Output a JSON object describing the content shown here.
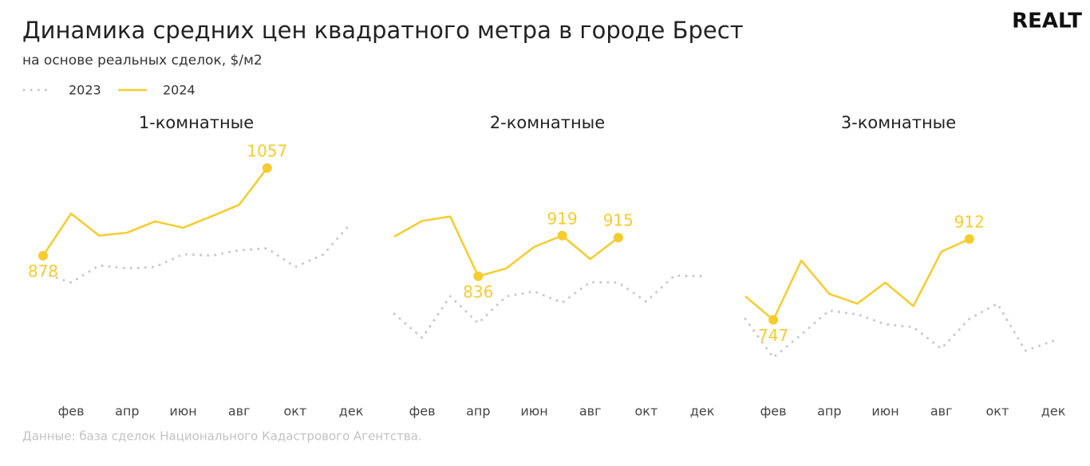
{
  "title": "Динамика средних цен квадратного метра в городе Брест",
  "subtitle": "на основе реальных сделок, $/м2",
  "logo": "REALT",
  "source": "Данные: база сделок Национального Кадастрового Агентства.",
  "chart_data": [
    {
      "type": "line",
      "title": "1-комнатные",
      "categories": [
        null,
        "фев",
        null,
        "апр",
        null,
        "июн",
        null,
        "авг",
        null,
        "окт",
        null,
        "дек"
      ],
      "series": [
        {
          "name": "2023",
          "color": "#c8c8cc",
          "style": "dotted",
          "values": [
            842,
            823,
            858,
            852,
            855,
            881,
            878,
            889,
            893,
            855,
            880,
            945
          ]
        },
        {
          "name": "2024",
          "color": "#f5cc2f",
          "style": "solid",
          "values": [
            878,
            964,
            919,
            925,
            948,
            935,
            958,
            982,
            1057,
            null,
            null,
            null
          ],
          "labeled": [
            0,
            8
          ]
        }
      ]
    },
    {
      "type": "line",
      "title": "2-комнатные",
      "categories": [
        null,
        "фев",
        null,
        "апр",
        null,
        "июн",
        null,
        "авг",
        null,
        "окт",
        null,
        "дек"
      ],
      "series": [
        {
          "name": "2023",
          "color": "#c8c8cc",
          "style": "dotted",
          "values": [
            759,
            710,
            795,
            740,
            795,
            805,
            782,
            824,
            823,
            784,
            837,
            836
          ]
        },
        {
          "name": "2024",
          "color": "#f5cc2f",
          "style": "solid",
          "values": [
            917,
            949,
            958,
            836,
            852,
            896,
            919,
            871,
            915,
            null,
            null,
            null
          ],
          "labeled": [
            3,
            6,
            8
          ]
        }
      ]
    },
    {
      "type": "line",
      "title": "3-комнатные",
      "categories": [
        null,
        "фев",
        null,
        "апр",
        null,
        "июн",
        null,
        "авг",
        null,
        "окт",
        null,
        "дек"
      ],
      "series": [
        {
          "name": "2023",
          "color": "#c8c8cc",
          "style": "dotted",
          "values": [
            749,
            670,
            717,
            766,
            758,
            738,
            732,
            688,
            749,
            780,
            684,
            704
          ]
        },
        {
          "name": "2024",
          "color": "#f5cc2f",
          "style": "solid",
          "values": [
            795,
            747,
            868,
            800,
            780,
            823,
            775,
            886,
            912,
            null,
            null,
            null
          ],
          "labeled": [
            1,
            8
          ]
        }
      ]
    }
  ]
}
